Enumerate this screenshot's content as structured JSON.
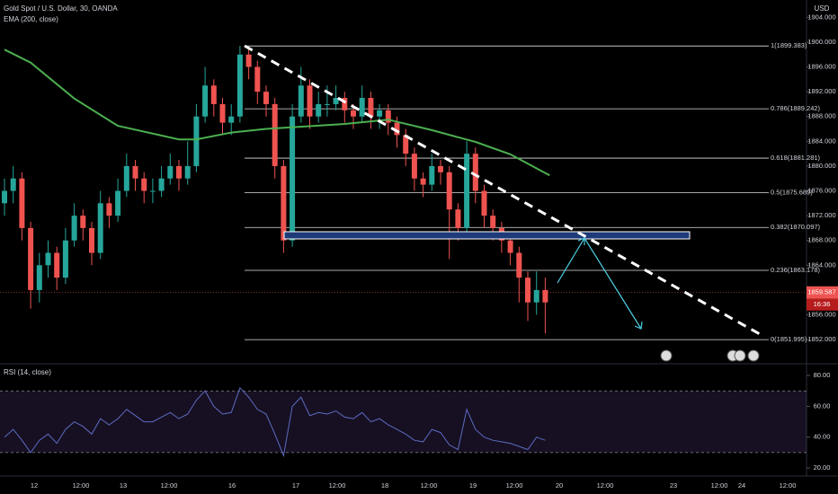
{
  "chart_data": [
    {
      "type": "candlestick",
      "title": "Gold Spot / U.S. Dollar, 30, OANDA",
      "axis_label": "USD",
      "xticks": [
        "12",
        "12:00",
        "13",
        "12:00",
        "16",
        "17",
        "12:00",
        "18",
        "12:00",
        "19",
        "12:00",
        "20",
        "12:00",
        "23",
        "12:00",
        "24",
        "12:00"
      ],
      "up_color": "#26a69a",
      "down_color": "#ef5350",
      "ohlc": [
        [
          1874,
          1878,
          1872,
          1876
        ],
        [
          1876,
          1880,
          1874,
          1878
        ],
        [
          1878,
          1879,
          1868,
          1870
        ],
        [
          1870,
          1871,
          1857,
          1860
        ],
        [
          1860,
          1866,
          1858,
          1864
        ],
        [
          1864,
          1868,
          1862,
          1866
        ],
        [
          1866,
          1867,
          1860,
          1862
        ],
        [
          1862,
          1870,
          1861,
          1868
        ],
        [
          1868,
          1874,
          1867,
          1872
        ],
        [
          1872,
          1873,
          1868,
          1870
        ],
        [
          1870,
          1871,
          1864,
          1866
        ],
        [
          1866,
          1876,
          1865,
          1874
        ],
        [
          1874,
          1875,
          1870,
          1872
        ],
        [
          1872,
          1878,
          1871,
          1876
        ],
        [
          1876,
          1882,
          1875,
          1880
        ],
        [
          1880,
          1881,
          1876,
          1878
        ],
        [
          1878,
          1879,
          1874,
          1876
        ],
        [
          1876,
          1878,
          1874,
          1876
        ],
        [
          1876,
          1880,
          1875,
          1878
        ],
        [
          1878,
          1882,
          1877,
          1880
        ],
        [
          1880,
          1881,
          1876,
          1878
        ],
        [
          1878,
          1884,
          1877,
          1880
        ],
        [
          1880,
          1890,
          1879,
          1888
        ],
        [
          1888,
          1896,
          1887,
          1893
        ],
        [
          1893,
          1894,
          1888,
          1890
        ],
        [
          1890,
          1891,
          1885,
          1887
        ],
        [
          1887,
          1890,
          1885,
          1888
        ],
        [
          1888,
          1899.4,
          1887,
          1898
        ],
        [
          1898,
          1899,
          1894,
          1896
        ],
        [
          1896,
          1897,
          1890,
          1892
        ],
        [
          1892,
          1893,
          1888,
          1890
        ],
        [
          1890,
          1891,
          1878,
          1880
        ],
        [
          1880,
          1881,
          1866,
          1868
        ],
        [
          1868,
          1890,
          1867,
          1888
        ],
        [
          1888,
          1896,
          1887,
          1893
        ],
        [
          1893,
          1894,
          1886,
          1888
        ],
        [
          1888,
          1892,
          1887,
          1890
        ],
        [
          1890,
          1893,
          1888,
          1890
        ],
        [
          1890,
          1893,
          1889,
          1891
        ],
        [
          1891,
          1892,
          1887,
          1889
        ],
        [
          1889,
          1890,
          1886,
          1888
        ],
        [
          1888,
          1893,
          1887,
          1891
        ],
        [
          1891,
          1892,
          1886,
          1888
        ],
        [
          1888,
          1890,
          1886,
          1889
        ],
        [
          1889,
          1890,
          1885,
          1887
        ],
        [
          1887,
          1888,
          1883,
          1885
        ],
        [
          1885,
          1886,
          1880,
          1882
        ],
        [
          1882,
          1883,
          1876,
          1878
        ],
        [
          1878,
          1879,
          1875,
          1877
        ],
        [
          1877,
          1882,
          1876,
          1880
        ],
        [
          1880,
          1881,
          1877,
          1879
        ],
        [
          1879,
          1880,
          1865,
          1873
        ],
        [
          1873,
          1874,
          1868,
          1870
        ],
        [
          1870,
          1884,
          1869,
          1882
        ],
        [
          1882,
          1883,
          1874,
          1876
        ],
        [
          1876,
          1877,
          1870,
          1872
        ],
        [
          1872,
          1873,
          1868,
          1870
        ],
        [
          1870,
          1871,
          1866,
          1868
        ],
        [
          1868,
          1869,
          1864,
          1866
        ],
        [
          1866,
          1867,
          1858,
          1862
        ],
        [
          1862,
          1863,
          1855,
          1858
        ],
        [
          1858,
          1863,
          1856,
          1860
        ],
        [
          1860,
          1862,
          1853,
          1858
        ]
      ],
      "ema": {
        "name": "EMA (200, close)",
        "color": "#4caf50",
        "x": [
          0,
          3,
          8,
          13,
          20,
          22,
          26,
          30,
          39,
          44,
          49,
          54,
          58,
          62.5
        ],
        "values": [
          1898.8,
          1896.7,
          1890.9,
          1886.5,
          1884.3,
          1884.3,
          1885.4,
          1886,
          1886.8,
          1887.5,
          1885.8,
          1883.9,
          1881.9,
          1878.5
        ]
      },
      "fib_levels": [
        {
          "value": 1899.383,
          "label": "1(1899.383)"
        },
        {
          "value": 1889.242,
          "label": "0.786(1889.242)"
        },
        {
          "value": 1881.281,
          "label": "0.618(1881.281)"
        },
        {
          "value": 1875.689,
          "label": "0.5(1875.689)"
        },
        {
          "value": 1870.097,
          "label": "0.382(1870.097)"
        },
        {
          "value": 1863.178,
          "label": "0.236(1863.178)"
        },
        {
          "value": 1851.995,
          "label": "0(1851.995)"
        }
      ],
      "last_price": {
        "value": 1859.587,
        "label": "1859.587"
      },
      "countdown": "16:36",
      "ylim": [
        1848.1,
        1906.8
      ],
      "yticks": [
        {
          "value": 1852,
          "label": "1852.000"
        },
        {
          "value": 1856,
          "label": "1856.000"
        },
        {
          "value": 1860,
          "label": "1860.000"
        },
        {
          "value": 1864,
          "label": "1864.000"
        },
        {
          "value": 1868,
          "label": "1868.000"
        },
        {
          "value": 1872,
          "label": "1872.000"
        },
        {
          "value": 1876,
          "label": "1876.000"
        },
        {
          "value": 1880,
          "label": "1880.000"
        },
        {
          "value": 1884,
          "label": "1884.000"
        },
        {
          "value": 1888,
          "label": "1888.000"
        },
        {
          "value": 1892,
          "label": "1892.000"
        },
        {
          "value": 1896,
          "label": "1896.000"
        },
        {
          "value": 1900,
          "label": "1900.000"
        },
        {
          "value": 1904,
          "label": "1904.000"
        }
      ]
    },
    {
      "type": "line",
      "title": "RSI (14, close)",
      "color": "#5c6bc0",
      "values": [
        40,
        45,
        38,
        30,
        38,
        42,
        36,
        45,
        50,
        47,
        42,
        52,
        48,
        52,
        58,
        54,
        50,
        50,
        53,
        56,
        52,
        55,
        64,
        70,
        60,
        55,
        56,
        72,
        66,
        58,
        55,
        42,
        28,
        60,
        66,
        54,
        56,
        55,
        57,
        53,
        52,
        56,
        50,
        52,
        48,
        45,
        42,
        38,
        37,
        45,
        43,
        35,
        32,
        58,
        45,
        40,
        38,
        37,
        36,
        34,
        32,
        40,
        38
      ],
      "bands": [
        30,
        70
      ],
      "ylim": [
        14.8,
        87.6
      ],
      "yticks": [
        {
          "value": 20,
          "label": "20.00"
        },
        {
          "value": 40,
          "label": "40.00"
        },
        {
          "value": 60,
          "label": "60.00"
        },
        {
          "value": 80,
          "label": "80.00"
        }
      ]
    }
  ]
}
